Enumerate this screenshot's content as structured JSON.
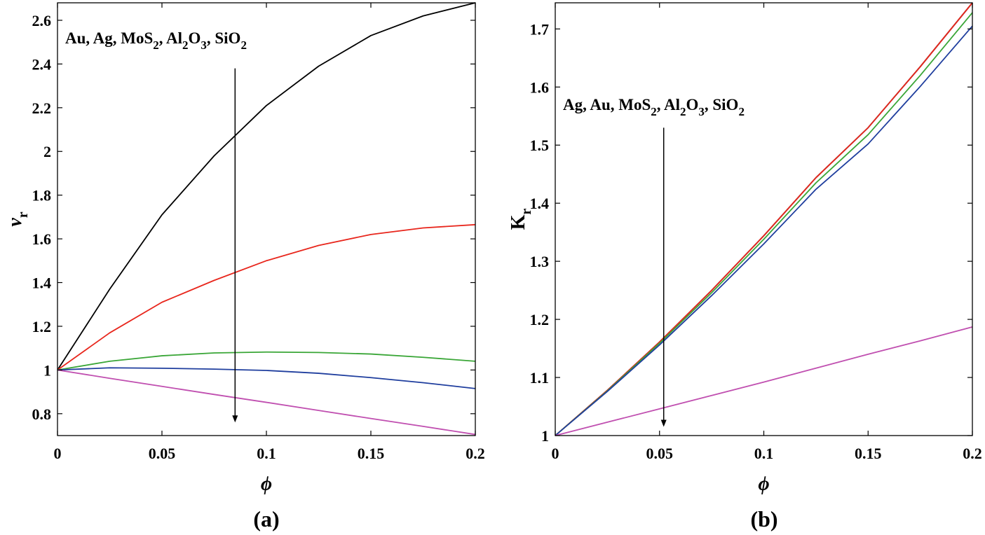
{
  "chart_data": [
    {
      "type": "line",
      "panel_label": "(a)",
      "xlabel": "ϕ",
      "ylabel": "ν",
      "ylabel_sub": "r",
      "xlim": [
        0,
        0.2
      ],
      "ylim": [
        0.7,
        2.68
      ],
      "xticks": [
        0,
        0.05,
        0.1,
        0.15,
        0.2
      ],
      "xtick_labels": [
        "0",
        "0.05",
        "0.1",
        "0.15",
        "0.2"
      ],
      "yticks": [
        0.8,
        1,
        1.2,
        1.4,
        1.6,
        1.8,
        2,
        2.2,
        2.4,
        2.6
      ],
      "ytick_labels": [
        "0.8",
        "1",
        "1.2",
        "1.4",
        "1.6",
        "1.8",
        "2",
        "2.2",
        "2.4",
        "2.6"
      ],
      "annotation": {
        "parts": [
          [
            "Au, Ag, MoS",
            ""
          ],
          [
            "2",
            "sub"
          ],
          [
            ", Al",
            ""
          ],
          [
            "2",
            "sub"
          ],
          [
            "O",
            ""
          ],
          [
            "3",
            "sub"
          ],
          [
            ", SiO",
            ""
          ],
          [
            "2",
            "sub"
          ]
        ],
        "arrow": {
          "x": 0.085,
          "y_start": 2.38,
          "y_end": 0.76
        }
      },
      "x": [
        0,
        0.025,
        0.05,
        0.075,
        0.1,
        0.125,
        0.15,
        0.175,
        0.2
      ],
      "series": [
        {
          "color": "#000000",
          "values": [
            1.0,
            1.37,
            1.71,
            1.98,
            2.21,
            2.39,
            2.53,
            2.62,
            2.68
          ]
        },
        {
          "color": "#e8261c",
          "values": [
            1.0,
            1.17,
            1.31,
            1.41,
            1.5,
            1.57,
            1.62,
            1.65,
            1.665
          ]
        },
        {
          "color": "#3aa637",
          "values": [
            1.0,
            1.04,
            1.065,
            1.078,
            1.082,
            1.08,
            1.073,
            1.058,
            1.04
          ]
        },
        {
          "color": "#1f3e9e",
          "values": [
            1.0,
            1.01,
            1.008,
            1.004,
            0.998,
            0.985,
            0.965,
            0.942,
            0.915
          ]
        },
        {
          "color": "#c04fb0",
          "values": [
            1.0,
            0.962,
            0.925,
            0.888,
            0.852,
            0.815,
            0.778,
            0.742,
            0.705
          ]
        }
      ]
    },
    {
      "type": "line",
      "panel_label": "(b)",
      "xlabel": "ϕ",
      "ylabel": "K",
      "ylabel_sub": "r",
      "xlim": [
        0,
        0.2
      ],
      "ylim": [
        1.0,
        1.745
      ],
      "xticks": [
        0,
        0.05,
        0.1,
        0.15,
        0.2
      ],
      "xtick_labels": [
        "0",
        "0.05",
        "0.1",
        "0.15",
        "0.2"
      ],
      "yticks": [
        1,
        1.1,
        1.2,
        1.3,
        1.4,
        1.5,
        1.6,
        1.7
      ],
      "ytick_labels": [
        "1",
        "1.1",
        "1.2",
        "1.3",
        "1.4",
        "1.5",
        "1.6",
        "1.7"
      ],
      "annotation": {
        "parts": [
          [
            "Ag, Au, MoS",
            ""
          ],
          [
            "2",
            "sub"
          ],
          [
            ", Al",
            ""
          ],
          [
            "2",
            "sub"
          ],
          [
            "O",
            ""
          ],
          [
            "3",
            "sub"
          ],
          [
            ", SiO",
            ""
          ],
          [
            "2",
            "sub"
          ]
        ],
        "arrow": {
          "x": 0.052,
          "y_start": 1.53,
          "y_end": 1.015
        }
      },
      "x": [
        0,
        0.025,
        0.05,
        0.075,
        0.1,
        0.125,
        0.15,
        0.175,
        0.2
      ],
      "series": [
        {
          "color": "#000000",
          "values": [
            1.0,
            1.078,
            1.161,
            1.25,
            1.344,
            1.444,
            1.53,
            1.635,
            1.745
          ]
        },
        {
          "color": "#e8261c",
          "values": [
            1.0,
            1.078,
            1.161,
            1.25,
            1.344,
            1.444,
            1.53,
            1.635,
            1.745
          ]
        },
        {
          "color": "#3aa637",
          "values": [
            1.0,
            1.077,
            1.159,
            1.246,
            1.338,
            1.435,
            1.518,
            1.62,
            1.728
          ]
        },
        {
          "color": "#1f3e9e",
          "values": [
            1.0,
            1.076,
            1.156,
            1.241,
            1.33,
            1.424,
            1.502,
            1.601,
            1.705
          ]
        },
        {
          "color": "#c04fb0",
          "values": [
            1.0,
            1.023,
            1.046,
            1.069,
            1.092,
            1.116,
            1.14,
            1.163,
            1.187
          ]
        }
      ]
    }
  ]
}
